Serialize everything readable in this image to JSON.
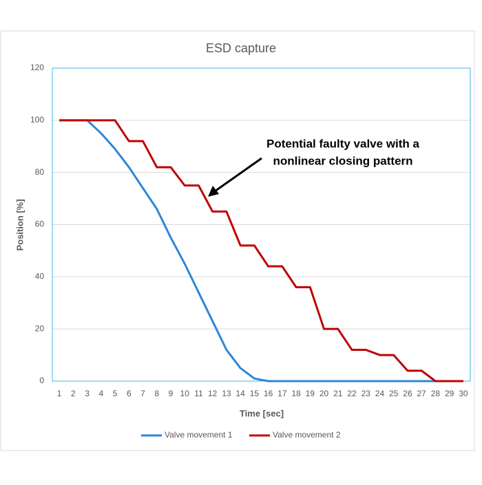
{
  "chart_data": {
    "type": "line",
    "title": "ESD capture",
    "x_label": "Time [sec]",
    "y_label": "Position [%]",
    "annotation": [
      "Potential faulty valve with a",
      "nonlinear closing pattern"
    ],
    "categories": [
      "1",
      "2",
      "3",
      "4",
      "5",
      "6",
      "7",
      "8",
      "9",
      "10",
      "11",
      "12",
      "13",
      "14",
      "15",
      "16",
      "17",
      "18",
      "19",
      "20",
      "21",
      "22",
      "23",
      "24",
      "25",
      "26",
      "27",
      "28",
      "29",
      "30"
    ],
    "series": [
      {
        "name": "Valve movement 1",
        "color": "#2e86d9",
        "values": [
          100,
          100,
          100,
          95,
          89,
          82,
          74,
          66,
          55,
          45,
          34,
          23,
          12,
          5,
          1,
          0,
          0,
          0,
          0,
          0,
          0,
          0,
          0,
          0,
          0,
          0,
          0,
          0,
          0,
          0
        ]
      },
      {
        "name": "Valve movement 2",
        "color": "#c00000",
        "values": [
          100,
          100,
          100,
          100,
          100,
          92,
          92,
          82,
          82,
          75,
          75,
          65,
          65,
          52,
          52,
          44,
          44,
          36,
          36,
          20,
          20,
          12,
          12,
          10,
          10,
          4,
          4,
          0,
          0,
          0
        ]
      }
    ],
    "ylim": [
      0,
      120
    ],
    "yticks": [
      0,
      20,
      40,
      60,
      80,
      100,
      120
    ],
    "grid": true,
    "legend": "bottom"
  }
}
